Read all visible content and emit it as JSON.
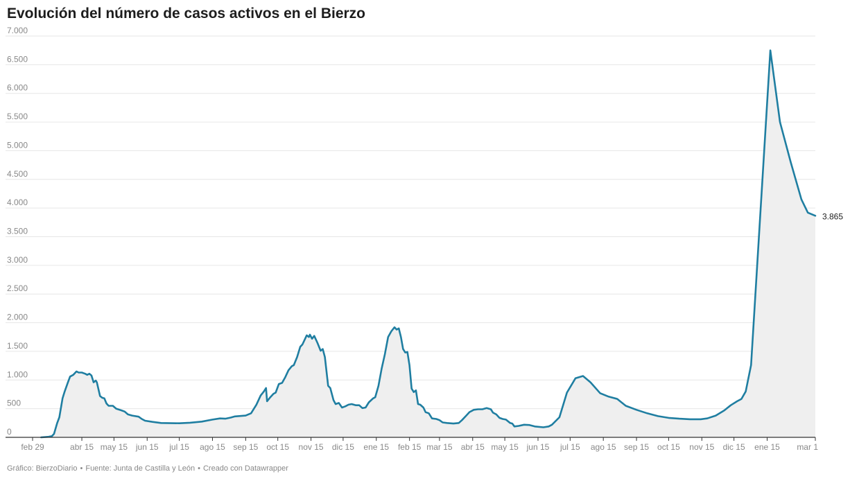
{
  "title": "Evolución del número de casos activos en el Bierzo",
  "footer": {
    "chart_by": "Gráfico: BierzoDiario",
    "source": "Fuente: Junta de Castilla y León",
    "tool": "Creado con Datawrapper",
    "separator": "•"
  },
  "colors": {
    "line": "#1f7ea1",
    "area": "#efefef",
    "grid": "#e6e6e6",
    "axis": "#333333",
    "text": "#888888"
  },
  "chart_data": {
    "type": "area",
    "title": "Evolución del número de casos activos en el Bierzo",
    "xlabel": "",
    "ylabel": "",
    "ylim": [
      0,
      7000
    ],
    "xlim": [
      "2020-02-29",
      "2022-03-01"
    ],
    "grid": true,
    "legend": "none",
    "y_ticks": [
      {
        "value": 0,
        "label": "0"
      },
      {
        "value": 500,
        "label": "500"
      },
      {
        "value": 1000,
        "label": "1.000"
      },
      {
        "value": 1500,
        "label": "1.500"
      },
      {
        "value": 2000,
        "label": "2.000"
      },
      {
        "value": 2500,
        "label": "2.500"
      },
      {
        "value": 3000,
        "label": "3.000"
      },
      {
        "value": 3500,
        "label": "3.500"
      },
      {
        "value": 4000,
        "label": "4.000"
      },
      {
        "value": 4500,
        "label": "4.500"
      },
      {
        "value": 5000,
        "label": "5.000"
      },
      {
        "value": 5500,
        "label": "5.500"
      },
      {
        "value": 6000,
        "label": "6.000"
      },
      {
        "value": 6500,
        "label": "6.500"
      },
      {
        "value": 7000,
        "label": "7.000"
      }
    ],
    "x_ticks": [
      {
        "date": "2020-02-29",
        "label": "feb 29"
      },
      {
        "date": "2020-04-15",
        "label": "abr 15"
      },
      {
        "date": "2020-05-15",
        "label": "may 15"
      },
      {
        "date": "2020-06-15",
        "label": "jun 15"
      },
      {
        "date": "2020-07-15",
        "label": "jul 15"
      },
      {
        "date": "2020-08-15",
        "label": "ago 15"
      },
      {
        "date": "2020-09-15",
        "label": "sep 15"
      },
      {
        "date": "2020-10-15",
        "label": "oct 15"
      },
      {
        "date": "2020-11-15",
        "label": "nov 15"
      },
      {
        "date": "2020-12-15",
        "label": "dic 15"
      },
      {
        "date": "2021-01-15",
        "label": "ene 15"
      },
      {
        "date": "2021-02-15",
        "label": "feb 15"
      },
      {
        "date": "2021-03-15",
        "label": "mar 15"
      },
      {
        "date": "2021-04-15",
        "label": "abr 15"
      },
      {
        "date": "2021-05-15",
        "label": "may 15"
      },
      {
        "date": "2021-06-15",
        "label": "jun 15"
      },
      {
        "date": "2021-07-15",
        "label": "jul 15"
      },
      {
        "date": "2021-08-15",
        "label": "ago 15"
      },
      {
        "date": "2021-09-15",
        "label": "sep 15"
      },
      {
        "date": "2021-10-15",
        "label": "oct 15"
      },
      {
        "date": "2021-11-15",
        "label": "nov 15"
      },
      {
        "date": "2021-12-15",
        "label": "dic 15"
      },
      {
        "date": "2022-01-15",
        "label": "ene 15"
      },
      {
        "date": "2022-03-01",
        "label": "mar 1"
      }
    ],
    "end_label": "3.865",
    "series": [
      {
        "points": [
          [
            "2020-03-08",
            0
          ],
          [
            "2020-03-15",
            10
          ],
          [
            "2020-03-18",
            20
          ],
          [
            "2020-03-20",
            60
          ],
          [
            "2020-03-23",
            250
          ],
          [
            "2020-03-25",
            350
          ],
          [
            "2020-03-28",
            680
          ],
          [
            "2020-03-30",
            800
          ],
          [
            "2020-04-02",
            960
          ],
          [
            "2020-04-04",
            1060
          ],
          [
            "2020-04-07",
            1090
          ],
          [
            "2020-04-10",
            1150
          ],
          [
            "2020-04-12",
            1130
          ],
          [
            "2020-04-15",
            1130
          ],
          [
            "2020-04-18",
            1110
          ],
          [
            "2020-04-20",
            1090
          ],
          [
            "2020-04-22",
            1110
          ],
          [
            "2020-04-24",
            1080
          ],
          [
            "2020-04-26",
            960
          ],
          [
            "2020-04-28",
            990
          ],
          [
            "2020-04-29",
            960
          ],
          [
            "2020-05-02",
            720
          ],
          [
            "2020-05-04",
            690
          ],
          [
            "2020-05-06",
            680
          ],
          [
            "2020-05-08",
            590
          ],
          [
            "2020-05-10",
            550
          ],
          [
            "2020-05-14",
            550
          ],
          [
            "2020-05-17",
            500
          ],
          [
            "2020-05-22",
            470
          ],
          [
            "2020-05-25",
            450
          ],
          [
            "2020-05-28",
            400
          ],
          [
            "2020-06-01",
            380
          ],
          [
            "2020-06-07",
            360
          ],
          [
            "2020-06-10",
            320
          ],
          [
            "2020-06-13",
            290
          ],
          [
            "2020-06-20",
            270
          ],
          [
            "2020-06-28",
            250
          ],
          [
            "2020-07-15",
            245
          ],
          [
            "2020-07-25",
            255
          ],
          [
            "2020-08-05",
            275
          ],
          [
            "2020-08-15",
            310
          ],
          [
            "2020-08-22",
            330
          ],
          [
            "2020-08-27",
            325
          ],
          [
            "2020-09-01",
            345
          ],
          [
            "2020-09-05",
            365
          ],
          [
            "2020-09-15",
            380
          ],
          [
            "2020-09-20",
            420
          ],
          [
            "2020-09-25",
            570
          ],
          [
            "2020-09-29",
            730
          ],
          [
            "2020-10-02",
            800
          ],
          [
            "2020-10-04",
            860
          ],
          [
            "2020-10-05",
            630
          ],
          [
            "2020-10-08",
            700
          ],
          [
            "2020-10-11",
            760
          ],
          [
            "2020-10-13",
            780
          ],
          [
            "2020-10-16",
            930
          ],
          [
            "2020-10-19",
            950
          ],
          [
            "2020-10-22",
            1050
          ],
          [
            "2020-10-25",
            1170
          ],
          [
            "2020-10-28",
            1240
          ],
          [
            "2020-10-30",
            1260
          ],
          [
            "2020-11-02",
            1400
          ],
          [
            "2020-11-05",
            1580
          ],
          [
            "2020-11-07",
            1620
          ],
          [
            "2020-11-09",
            1700
          ],
          [
            "2020-11-11",
            1780
          ],
          [
            "2020-11-13",
            1750
          ],
          [
            "2020-11-14",
            1790
          ],
          [
            "2020-11-16",
            1720
          ],
          [
            "2020-11-18",
            1770
          ],
          [
            "2020-11-21",
            1650
          ],
          [
            "2020-11-24",
            1510
          ],
          [
            "2020-11-26",
            1540
          ],
          [
            "2020-11-28",
            1400
          ],
          [
            "2020-12-01",
            900
          ],
          [
            "2020-12-03",
            860
          ],
          [
            "2020-12-06",
            650
          ],
          [
            "2020-12-08",
            580
          ],
          [
            "2020-12-11",
            600
          ],
          [
            "2020-12-14",
            520
          ],
          [
            "2020-12-17",
            540
          ],
          [
            "2020-12-20",
            570
          ],
          [
            "2020-12-23",
            580
          ],
          [
            "2020-12-27",
            560
          ],
          [
            "2020-12-30",
            560
          ],
          [
            "2021-01-02",
            510
          ],
          [
            "2021-01-05",
            520
          ],
          [
            "2021-01-08",
            610
          ],
          [
            "2021-01-12",
            680
          ],
          [
            "2021-01-14",
            700
          ],
          [
            "2021-01-17",
            900
          ],
          [
            "2021-01-20",
            1200
          ],
          [
            "2021-01-23",
            1450
          ],
          [
            "2021-01-26",
            1750
          ],
          [
            "2021-01-29",
            1850
          ],
          [
            "2021-02-01",
            1920
          ],
          [
            "2021-02-03",
            1880
          ],
          [
            "2021-02-05",
            1900
          ],
          [
            "2021-02-07",
            1750
          ],
          [
            "2021-02-09",
            1540
          ],
          [
            "2021-02-11",
            1480
          ],
          [
            "2021-02-13",
            1490
          ],
          [
            "2021-02-15",
            1260
          ],
          [
            "2021-02-17",
            850
          ],
          [
            "2021-02-19",
            790
          ],
          [
            "2021-02-21",
            820
          ],
          [
            "2021-02-23",
            580
          ],
          [
            "2021-02-25",
            570
          ],
          [
            "2021-02-28",
            520
          ],
          [
            "2021-03-02",
            440
          ],
          [
            "2021-03-05",
            420
          ],
          [
            "2021-03-08",
            330
          ],
          [
            "2021-03-12",
            320
          ],
          [
            "2021-03-15",
            300
          ],
          [
            "2021-03-18",
            260
          ],
          [
            "2021-03-22",
            250
          ],
          [
            "2021-03-28",
            240
          ],
          [
            "2021-04-02",
            250
          ],
          [
            "2021-04-05",
            300
          ],
          [
            "2021-04-09",
            380
          ],
          [
            "2021-04-12",
            440
          ],
          [
            "2021-04-16",
            480
          ],
          [
            "2021-04-20",
            490
          ],
          [
            "2021-04-24",
            490
          ],
          [
            "2021-04-28",
            510
          ],
          [
            "2021-05-02",
            490
          ],
          [
            "2021-05-04",
            430
          ],
          [
            "2021-05-07",
            400
          ],
          [
            "2021-05-10",
            340
          ],
          [
            "2021-05-13",
            320
          ],
          [
            "2021-05-16",
            310
          ],
          [
            "2021-05-20",
            250
          ],
          [
            "2021-05-22",
            240
          ],
          [
            "2021-05-24",
            190
          ],
          [
            "2021-05-28",
            200
          ],
          [
            "2021-06-02",
            220
          ],
          [
            "2021-06-07",
            215
          ],
          [
            "2021-06-12",
            190
          ],
          [
            "2021-06-20",
            175
          ],
          [
            "2021-06-25",
            190
          ],
          [
            "2021-06-28",
            220
          ],
          [
            "2021-07-05",
            350
          ],
          [
            "2021-07-12",
            780
          ],
          [
            "2021-07-20",
            1030
          ],
          [
            "2021-07-27",
            1070
          ],
          [
            "2021-08-03",
            960
          ],
          [
            "2021-08-12",
            770
          ],
          [
            "2021-08-20",
            710
          ],
          [
            "2021-08-28",
            670
          ],
          [
            "2021-09-05",
            550
          ],
          [
            "2021-09-15",
            480
          ],
          [
            "2021-09-25",
            420
          ],
          [
            "2021-10-05",
            370
          ],
          [
            "2021-10-15",
            340
          ],
          [
            "2021-10-25",
            325
          ],
          [
            "2021-11-04",
            315
          ],
          [
            "2021-11-14",
            315
          ],
          [
            "2021-11-20",
            330
          ],
          [
            "2021-11-28",
            380
          ],
          [
            "2021-12-06",
            470
          ],
          [
            "2021-12-12",
            560
          ],
          [
            "2021-12-18",
            630
          ],
          [
            "2021-12-22",
            670
          ],
          [
            "2021-12-26",
            800
          ],
          [
            "2021-12-31",
            1260
          ],
          [
            "2022-01-18",
            6750
          ],
          [
            "2022-01-27",
            5500
          ],
          [
            "2022-02-06",
            4800
          ],
          [
            "2022-02-16",
            4150
          ],
          [
            "2022-02-22",
            3920
          ],
          [
            "2022-03-01",
            3865
          ]
        ]
      }
    ]
  }
}
